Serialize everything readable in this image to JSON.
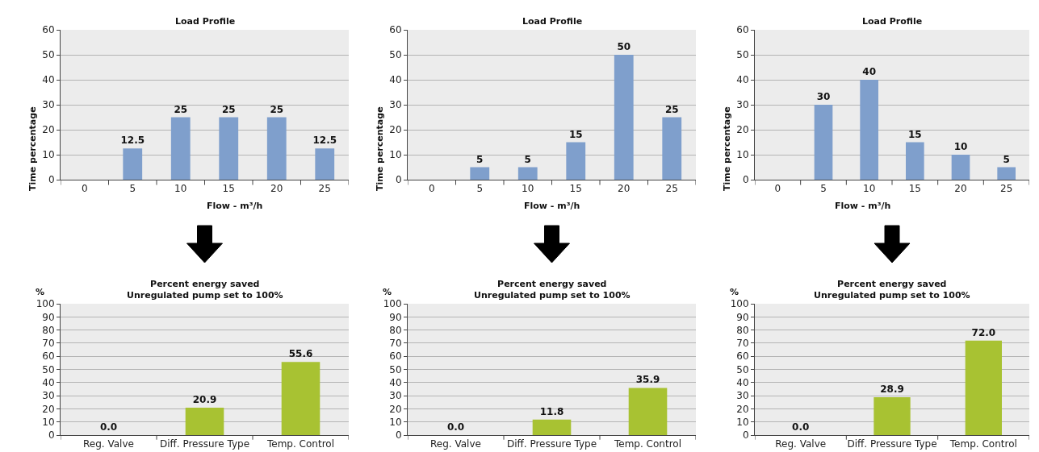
{
  "chart_data": [
    {
      "type": "bar",
      "title": "Load Profile",
      "xlabel": "Flow - m³/h",
      "ylabel": "Time percentage",
      "categories": [
        "0",
        "5",
        "10",
        "15",
        "20",
        "25"
      ],
      "values": [
        0,
        12.5,
        25,
        25,
        25,
        12.5
      ],
      "value_labels": [
        null,
        "12.5",
        "25",
        "25",
        "25",
        "12.5"
      ],
      "color": "#7f9fcc",
      "ylim": [
        0,
        60
      ],
      "yticks": [
        0,
        10,
        20,
        30,
        40,
        50,
        60
      ],
      "grid": "y"
    },
    {
      "type": "bar",
      "title": "Load Profile",
      "xlabel": "Flow - m³/h",
      "ylabel": "Time percentage",
      "categories": [
        "0",
        "5",
        "10",
        "15",
        "20",
        "25"
      ],
      "values": [
        0,
        5,
        5,
        15,
        50,
        25
      ],
      "value_labels": [
        null,
        "5",
        "5",
        "15",
        "50",
        "25"
      ],
      "color": "#7f9fcc",
      "ylim": [
        0,
        60
      ],
      "yticks": [
        0,
        10,
        20,
        30,
        40,
        50,
        60
      ],
      "grid": "y"
    },
    {
      "type": "bar",
      "title": "Load Profile",
      "xlabel": "Flow - m³/h",
      "ylabel": "Time percentage",
      "categories": [
        "0",
        "5",
        "10",
        "15",
        "20",
        "25"
      ],
      "values": [
        0,
        30,
        40,
        15,
        10,
        5
      ],
      "value_labels": [
        null,
        "30",
        "40",
        "15",
        "10",
        "5"
      ],
      "color": "#7f9fcc",
      "ylim": [
        0,
        60
      ],
      "yticks": [
        0,
        10,
        20,
        30,
        40,
        50,
        60
      ],
      "grid": "y"
    },
    {
      "type": "bar",
      "title": "Percent energy saved\nUnregulated pump set to 100%",
      "ylabel": "%",
      "categories": [
        "Reg. Valve",
        "Diff. Pressure Type",
        "Temp. Control"
      ],
      "values": [
        0,
        20.9,
        55.6
      ],
      "value_labels": [
        "0.0",
        "20.9",
        "55.6"
      ],
      "color": "#a8c232",
      "ylim": [
        0,
        100
      ],
      "yticks": [
        0,
        10,
        20,
        30,
        40,
        50,
        60,
        70,
        80,
        90,
        100
      ],
      "grid": "y"
    },
    {
      "type": "bar",
      "title": "Percent energy saved\nUnregulated pump set to 100%",
      "ylabel": "%",
      "categories": [
        "Reg. Valve",
        "Diff. Pressure Type",
        "Temp. Control"
      ],
      "values": [
        0,
        11.8,
        35.9
      ],
      "value_labels": [
        "0.0",
        "11.8",
        "35.9"
      ],
      "color": "#a8c232",
      "ylim": [
        0,
        100
      ],
      "yticks": [
        0,
        10,
        20,
        30,
        40,
        50,
        60,
        70,
        80,
        90,
        100
      ],
      "grid": "y"
    },
    {
      "type": "bar",
      "title": "Percent energy saved\nUnregulated pump set to 100%",
      "ylabel": "%",
      "categories": [
        "Reg. Valve",
        "Diff. Pressure Type",
        "Temp. Control"
      ],
      "values": [
        0,
        28.9,
        72.0
      ],
      "value_labels": [
        "0.0",
        "28.9",
        "72.0"
      ],
      "color": "#a8c232",
      "ylim": [
        0,
        100
      ],
      "yticks": [
        0,
        10,
        20,
        30,
        40,
        50,
        60,
        70,
        80,
        90,
        100
      ],
      "grid": "y"
    }
  ]
}
